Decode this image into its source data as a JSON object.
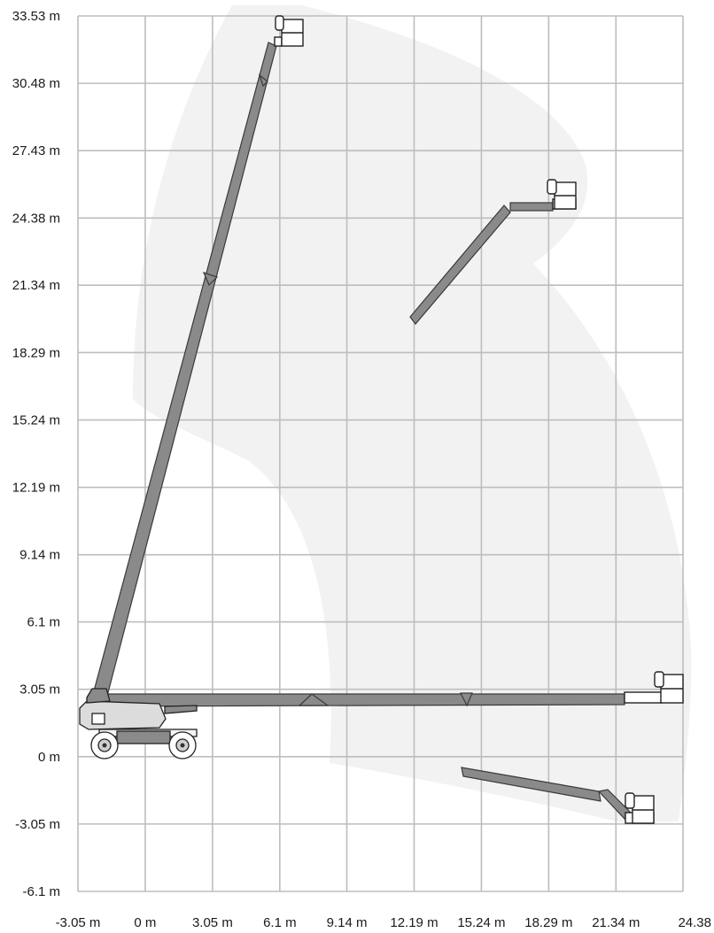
{
  "chart_data": {
    "type": "working-range-diagram",
    "x_axis": {
      "unit": "m",
      "range": [
        -3.05,
        24.38
      ],
      "ticks": [
        -3.05,
        0,
        3.05,
        6.1,
        9.14,
        12.19,
        15.24,
        18.29,
        21.34,
        24.38
      ],
      "tick_labels": [
        "-3.05 m",
        "0 m",
        "3.05 m",
        "6.1 m",
        "9.14 m",
        "12.19 m",
        "15.24 m",
        "18.29 m",
        "21.34 m",
        "24.38"
      ]
    },
    "y_axis": {
      "unit": "m",
      "range": [
        -6.1,
        33.53
      ],
      "ticks": [
        33.53,
        30.48,
        27.43,
        24.38,
        21.34,
        18.29,
        15.24,
        12.19,
        9.14,
        6.1,
        3.05,
        0,
        -3.05,
        -6.1
      ],
      "tick_labels": [
        "33.53 m",
        "30.48 m",
        "27.43 m",
        "24.38 m",
        "21.34 m",
        "18.29 m",
        "15.24 m",
        "12.19 m",
        "9.14 m",
        "6.1 m",
        "3.05 m",
        "0 m",
        "-3.05 m",
        "-6.1 m"
      ]
    },
    "grid": true,
    "envelope": "shaded working envelope",
    "boom_positions": [
      {
        "pose": "fully elevated",
        "platform_x": 6.7,
        "platform_y": 32.6
      },
      {
        "pose": "upper reach",
        "platform_x": 19.4,
        "platform_y": 25.0
      },
      {
        "pose": "horizontal max outreach",
        "platform_x": 23.0,
        "platform_y": 3.1
      },
      {
        "pose": "below grade",
        "platform_x": 22.3,
        "platform_y": -2.3
      }
    ]
  }
}
